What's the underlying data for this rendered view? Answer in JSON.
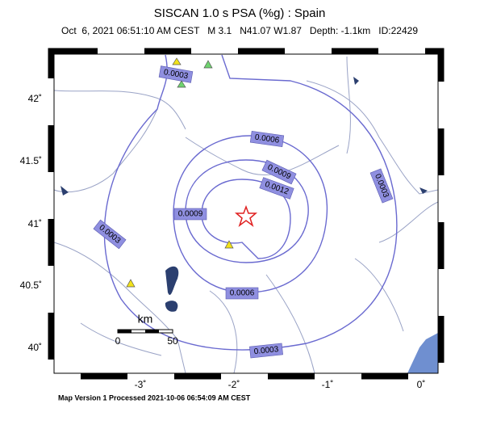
{
  "header": {
    "title": "SISCAN 1.0 s PSA (%g) : Spain",
    "subtitle": "Oct  6, 2021 06:51:10 AM CEST   M 3.1   N41.07 W1.87   Depth: -1.1km   ID:22429"
  },
  "axes": {
    "lat_labels": [
      "42˚",
      "41.5˚",
      "41˚",
      "40.5˚",
      "40˚"
    ],
    "lon_labels": [
      "-3˚",
      "-2˚",
      "-1˚",
      "0˚"
    ]
  },
  "contour_labels": [
    "0.0003",
    "0.0003",
    "0.0003",
    "0.0003",
    "0.0006",
    "0.0006",
    "0.0009",
    "0.0009",
    "0.0012"
  ],
  "scale_bar": {
    "unit": "km",
    "start": "0",
    "end": "50"
  },
  "footer": "Map Version 1 Processed 2021-10-06 06:54:09 AM CEST"
}
